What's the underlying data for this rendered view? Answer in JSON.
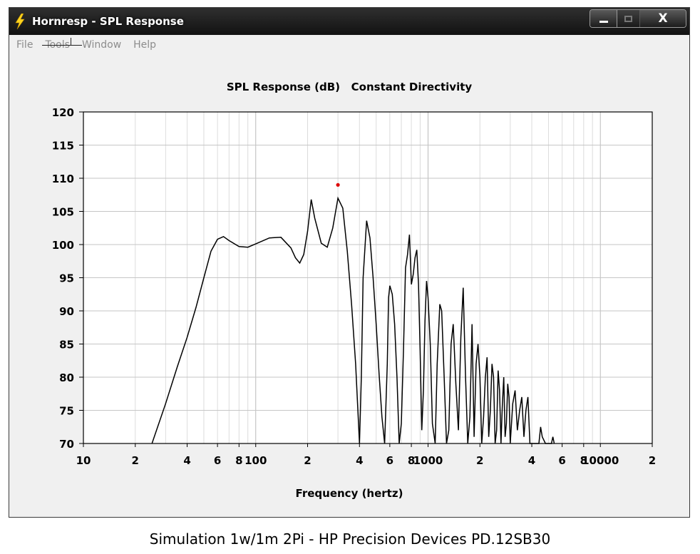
{
  "window": {
    "title": "Hornresp - SPL Response",
    "close_label": "X"
  },
  "menu": {
    "items": [
      "File",
      "Tools",
      "Window",
      "Help"
    ]
  },
  "chart_data": {
    "type": "line",
    "title": "SPL Response (dB)   Constant Directivity",
    "xlabel": "Frequency (hertz)",
    "ylabel": "",
    "x_scale": "log",
    "xlim": [
      10,
      20000
    ],
    "ylim": [
      70,
      120
    ],
    "x_ticks": [
      {
        "value": 10,
        "label": "10"
      },
      {
        "value": 20,
        "label": "2"
      },
      {
        "value": 40,
        "label": "4"
      },
      {
        "value": 60,
        "label": "6"
      },
      {
        "value": 80,
        "label": "8"
      },
      {
        "value": 100,
        "label": "100"
      },
      {
        "value": 200,
        "label": "2"
      },
      {
        "value": 400,
        "label": "4"
      },
      {
        "value": 600,
        "label": "6"
      },
      {
        "value": 800,
        "label": "8"
      },
      {
        "value": 1000,
        "label": "1000"
      },
      {
        "value": 2000,
        "label": "2"
      },
      {
        "value": 4000,
        "label": "4"
      },
      {
        "value": 6000,
        "label": "6"
      },
      {
        "value": 8000,
        "label": "8"
      },
      {
        "value": 10000,
        "label": "10000"
      },
      {
        "value": 20000,
        "label": "2"
      }
    ],
    "y_ticks": [
      70,
      75,
      80,
      85,
      90,
      95,
      100,
      105,
      110,
      115,
      120
    ],
    "grid": true,
    "line_color": "#000000",
    "marker": {
      "x": 300,
      "y": 109,
      "color": "#dd0000"
    },
    "series": [
      {
        "x": [
          25,
          30,
          35,
          40,
          45,
          50,
          55,
          60,
          65,
          70,
          80,
          90,
          100,
          120,
          140,
          160,
          170,
          180,
          190,
          200,
          210,
          220,
          240,
          260,
          280,
          300,
          320,
          340,
          360,
          380,
          390,
          400,
          410,
          420,
          440,
          460,
          480,
          500,
          520,
          540,
          560,
          580,
          590,
          600,
          620,
          640,
          660,
          680,
          700,
          720,
          740,
          760,
          780,
          800,
          820,
          840,
          860,
          880,
          900,
          920,
          940,
          960,
          980,
          1000,
          1030,
          1060,
          1100,
          1130,
          1170,
          1200,
          1240,
          1280,
          1320,
          1360,
          1400,
          1450,
          1500,
          1550,
          1600,
          1650,
          1700,
          1750,
          1800,
          1850,
          1900,
          1950,
          2000,
          2050,
          2100,
          2150,
          2200,
          2250,
          2300,
          2350,
          2400,
          2450,
          2500,
          2550,
          2600,
          2650,
          2700,
          2750,
          2800,
          2850,
          2900,
          2950,
          3000,
          3100,
          3200,
          3300,
          3400,
          3500,
          3600,
          3700,
          3800,
          3900,
          4000,
          4200,
          4400,
          4500,
          4600,
          4800,
          5000,
          5200,
          5300,
          5400
        ],
        "y": [
          70,
          76,
          81.5,
          86,
          90.5,
          95,
          99,
          100.8,
          101.2,
          100.6,
          99.7,
          99.6,
          100.1,
          101,
          101.1,
          99.5,
          98,
          97.2,
          98.5,
          102,
          106.8,
          104,
          100.2,
          99.6,
          102.5,
          107,
          105.5,
          99,
          91,
          82,
          76,
          70,
          80,
          95,
          103.6,
          101,
          95,
          88,
          80.5,
          74,
          70,
          82,
          92,
          93.8,
          92.5,
          88,
          80,
          70,
          73,
          84,
          96.5,
          98.5,
          101.5,
          94,
          95.5,
          98,
          99.2,
          94,
          84,
          72,
          78,
          88.5,
          94.5,
          92,
          85,
          73,
          70,
          82,
          91,
          90,
          80,
          70,
          72,
          85,
          88,
          79,
          72,
          86,
          93.5,
          80,
          70,
          74,
          88,
          71,
          82,
          85,
          80,
          70,
          74,
          80,
          83,
          71,
          75,
          82,
          80,
          70,
          72,
          81,
          78,
          70,
          76,
          80,
          71,
          73,
          79,
          77,
          70,
          76,
          78,
          72,
          75,
          77,
          71,
          75,
          77,
          70,
          70,
          70,
          70,
          72.5,
          71,
          70,
          70,
          70,
          71,
          70
        ]
      }
    ]
  },
  "caption": "Simulation 1w/1m 2Pi - HP Precision Devices PD.12SB30"
}
